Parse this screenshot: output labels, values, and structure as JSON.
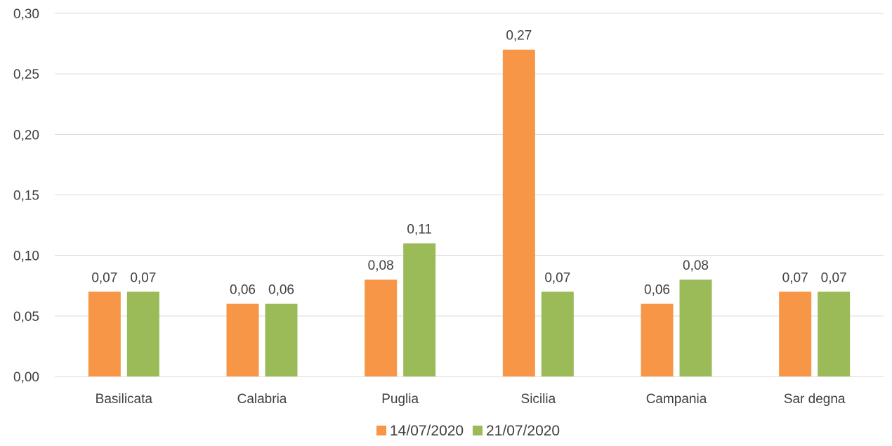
{
  "chart_data": {
    "type": "bar",
    "title": "",
    "xlabel": "",
    "ylabel": "",
    "categories": [
      "Basilicata",
      "Calabria",
      "Puglia",
      "Sicilia",
      "Campania",
      "Sar degna"
    ],
    "series": [
      {
        "name": "14/07/2020",
        "color": "#F79646",
        "values": [
          0.07,
          0.06,
          0.08,
          0.27,
          0.06,
          0.07
        ],
        "labels": [
          "0,07",
          "0,06",
          "0,08",
          "0,27",
          "0,06",
          "0,07"
        ]
      },
      {
        "name": "21/07/2020",
        "color": "#9BBB59",
        "values": [
          0.07,
          0.06,
          0.11,
          0.07,
          0.08,
          0.07
        ],
        "labels": [
          "0,07",
          "0,06",
          "0,11",
          "0,07",
          "0,08",
          "0,07"
        ]
      }
    ],
    "ylim": [
      0,
      0.3
    ],
    "yticks": [
      0,
      0.05,
      0.1,
      0.15,
      0.2,
      0.25,
      0.3
    ],
    "ytick_labels": [
      "0,00",
      "0,05",
      "0,10",
      "0,15",
      "0,20",
      "0,25",
      "0,30"
    ],
    "grid": true,
    "grid_color": "#D9D9D9",
    "legend_position": "bottom"
  }
}
